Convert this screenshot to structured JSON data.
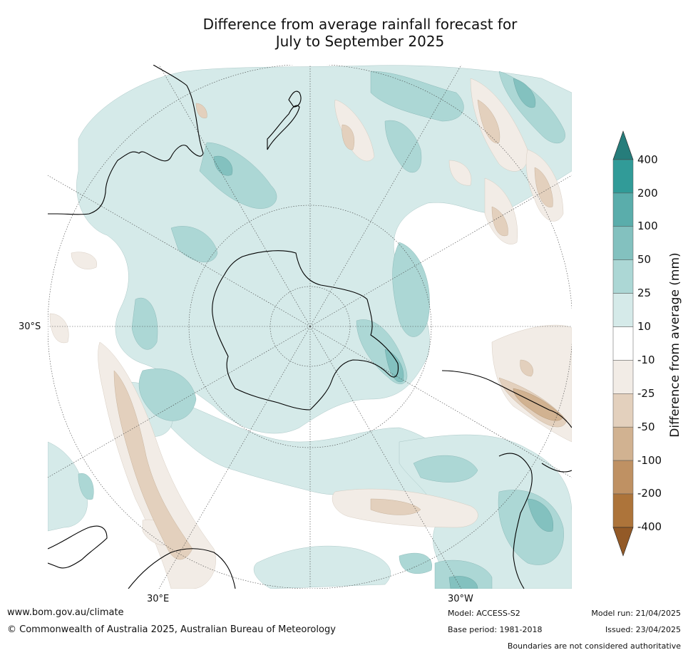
{
  "title": {
    "line1": "Difference from average rainfall forecast for",
    "line2": "July to September 2025"
  },
  "map": {
    "projection": "south polar stereographic",
    "latitude_labels": [
      "30°S"
    ],
    "longitude_labels": [
      "30°E",
      "30°W"
    ]
  },
  "colorbar": {
    "label": "Difference from average (mm)",
    "ticks": [
      "400",
      "200",
      "100",
      "50",
      "25",
      "10",
      "-10",
      "-25",
      "-50",
      "-100",
      "-200",
      "-400"
    ],
    "colors": {
      "over": "#267d7b",
      "b200_400": "#319b98",
      "b100_200": "#5aadab",
      "b50_100": "#83c1bf",
      "b25_50": "#acd7d5",
      "b10_25": "#d5eae9",
      "bneutral": "#ffffff",
      "bm25_m10": "#f2ece6",
      "bm50_m25": "#e3d0bd",
      "bm100_m50": "#d1b291",
      "bm200_m100": "#bf9163",
      "bm400_m200": "#ad743a",
      "under": "#935a27"
    }
  },
  "footer": {
    "website": "www.bom.gov.au/climate",
    "copyright": "© Commonwealth of Australia 2025, Australian Bureau of Meteorology",
    "model": "Model: ACCESS-S2",
    "base_period": "Base period: 1981-2018",
    "model_run": "Model run: 21/04/2025",
    "issued": "Issued: 23/04/2025",
    "disclaimer": "Boundaries are not considered authoritative"
  }
}
